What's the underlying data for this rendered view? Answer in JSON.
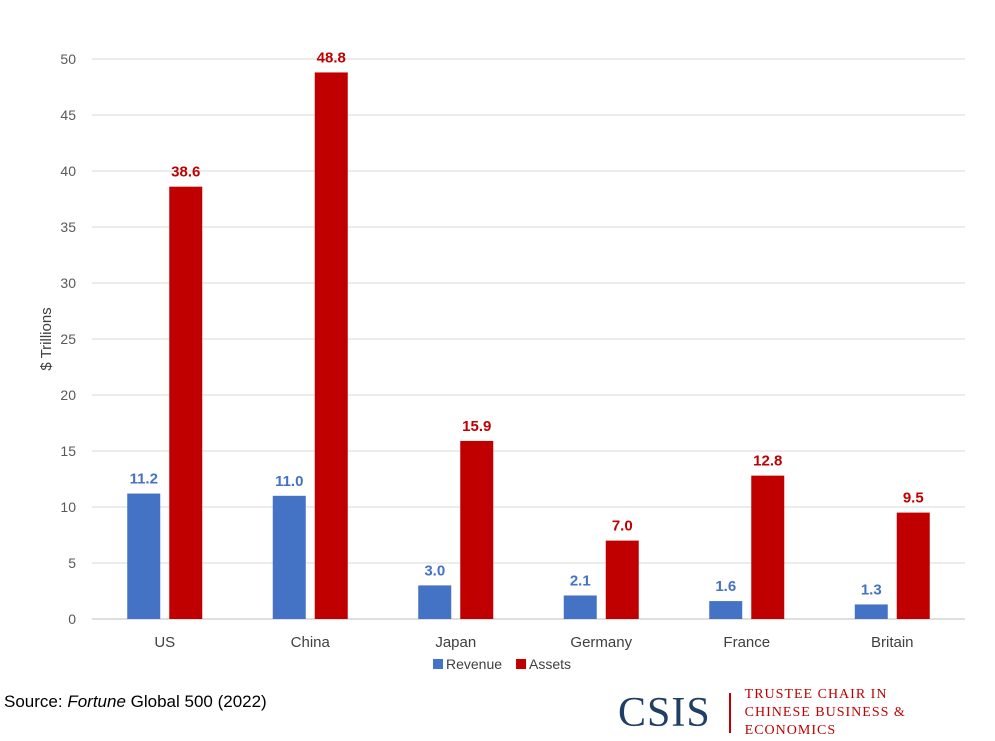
{
  "chart_data": {
    "type": "bar",
    "title": "",
    "xlabel": "",
    "ylabel": "$ Trillions",
    "ylim": [
      0,
      50
    ],
    "yticks": [
      0,
      5,
      10,
      15,
      20,
      25,
      30,
      35,
      40,
      45,
      50
    ],
    "grid": true,
    "categories": [
      "US",
      "China",
      "Japan",
      "Germany",
      "France",
      "Britain"
    ],
    "series": [
      {
        "name": "Revenue",
        "color": "#4472c4",
        "label_color": "#4472c4",
        "values": [
          11.2,
          11.0,
          3.0,
          2.1,
          1.6,
          1.3
        ],
        "labels": [
          "11.2",
          "11.0",
          "3.0",
          "2.1",
          "1.6",
          "1.3"
        ]
      },
      {
        "name": "Assets",
        "color": "#c00000",
        "label_color": "#c00000",
        "values": [
          38.6,
          48.8,
          15.9,
          7.0,
          12.8,
          9.5
        ],
        "labels": [
          "38.6",
          "48.8",
          "15.9",
          "7.0",
          "12.8",
          "9.5"
        ]
      }
    ],
    "legend_position": "bottom"
  },
  "footer": {
    "source_prefix": "Source: ",
    "source_italic": "Fortune",
    "source_suffix": " Global 500 (2022)"
  },
  "logo": {
    "mark": "CSIS",
    "line1": "TRUSTEE CHAIR IN",
    "line2": "CHINESE BUSINESS & ECONOMICS"
  }
}
